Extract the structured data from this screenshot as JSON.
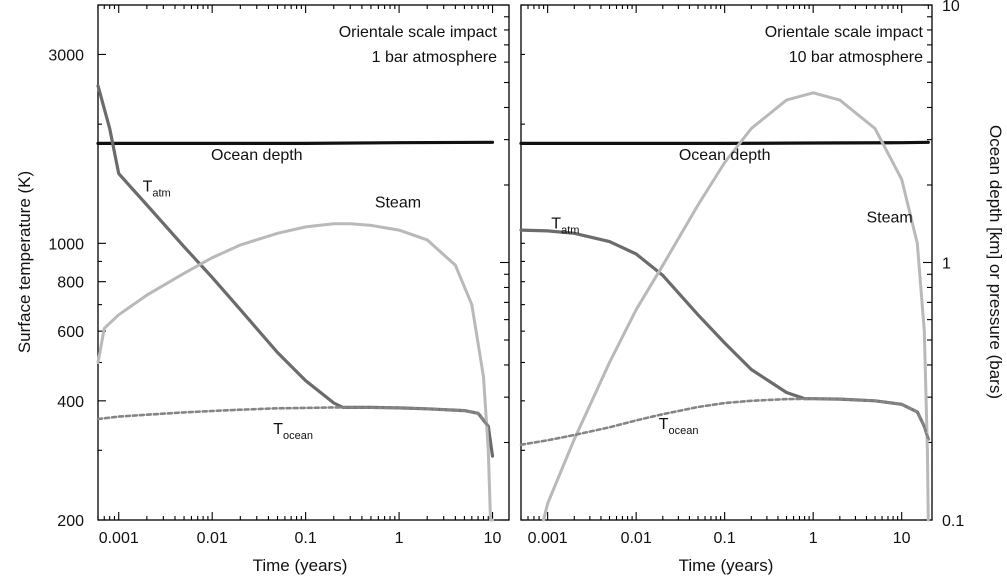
{
  "colors": {
    "t_atm": "#6b6b6b",
    "steam": "#b9b9b9",
    "t_ocean": "#858585",
    "ocean_depth": "#111111"
  },
  "chart_data": [
    {
      "type": "line",
      "title": "",
      "annotation_lines": [
        "Orientale scale impact",
        "1 bar atmosphere"
      ],
      "xlabel": "Time (years)",
      "ylabel_left": "Surface temperature (K)",
      "ylabel_right": "",
      "xscale": "log",
      "yscale": "log",
      "xlim": [
        0.0006,
        15
      ],
      "ylim_left": [
        200,
        4000
      ],
      "ylim_right": [
        0.1,
        10
      ],
      "xticks": [
        0.001,
        0.01,
        0.1,
        1,
        10
      ],
      "xtick_labels": [
        "0.001",
        "0.01",
        "0.1",
        "1",
        "10"
      ],
      "yticks_left": [
        200,
        400,
        600,
        800,
        1000,
        3000
      ],
      "ytick_labels_left": [
        "200",
        "400",
        "600",
        "800",
        "1000",
        "3000"
      ],
      "yticks_right": [],
      "ytick_labels_right": [],
      "series": [
        {
          "name": "Ocean depth",
          "label_at": [
            0.03,
            2.5
          ],
          "axis": "right",
          "style": "solid",
          "color_key": "ocean_depth",
          "x": [
            0.0006,
            0.001,
            0.01,
            0.1,
            1,
            10
          ],
          "y": [
            2.9,
            2.9,
            2.9,
            2.9,
            2.92,
            2.93
          ]
        },
        {
          "name": "Tatm",
          "label_at": [
            0.0018,
            1350
          ],
          "axis": "left",
          "style": "solid",
          "color_key": "t_atm",
          "x": [
            0.0006,
            0.0008,
            0.001,
            0.002,
            0.005,
            0.01,
            0.02,
            0.05,
            0.1,
            0.2,
            0.25,
            0.5,
            1,
            2,
            5,
            7,
            9,
            10
          ],
          "y": [
            2500,
            1950,
            1500,
            1250,
            980,
            820,
            680,
            530,
            450,
            395,
            385,
            385,
            384,
            382,
            378,
            372,
            345,
            290
          ]
        },
        {
          "name": "Steam",
          "label_at": [
            0.55,
            1230
          ],
          "axis": "left",
          "style": "solid",
          "color_key": "steam",
          "x": [
            0.0006,
            0.0007,
            0.001,
            0.002,
            0.005,
            0.01,
            0.02,
            0.05,
            0.1,
            0.2,
            0.3,
            0.5,
            1,
            2,
            4,
            6,
            8,
            9,
            9.5,
            10
          ],
          "y": [
            500,
            610,
            660,
            740,
            840,
            920,
            990,
            1060,
            1100,
            1120,
            1120,
            1110,
            1080,
            1020,
            880,
            700,
            460,
            300,
            200,
            150
          ]
        },
        {
          "name": "Tocean",
          "label_at": [
            0.045,
            330
          ],
          "axis": "left",
          "style": "dashed",
          "color_key": "t_ocean",
          "x": [
            0.0006,
            0.001,
            0.002,
            0.005,
            0.01,
            0.02,
            0.05,
            0.1,
            0.2,
            0.25,
            1,
            2,
            5,
            7,
            9
          ],
          "y": [
            360,
            365,
            369,
            374,
            377,
            380,
            383,
            384,
            385,
            385,
            384,
            382,
            378,
            372,
            345
          ]
        }
      ]
    },
    {
      "type": "line",
      "title": "",
      "annotation_lines": [
        "Orientale scale impact",
        "10 bar atmosphere"
      ],
      "xlabel": "Time (years)",
      "ylabel_left": "",
      "ylabel_right": "Ocean depth [km] or pressure (bars)",
      "xscale": "log",
      "yscale": "log",
      "xlim": [
        0.0005,
        22
      ],
      "ylim_left": [
        200,
        4000
      ],
      "ylim_right": [
        0.1,
        10
      ],
      "xticks": [
        0.001,
        0.01,
        0.1,
        1,
        10
      ],
      "xtick_labels": [
        "0.001",
        "0.01",
        "0.1",
        "1",
        "10"
      ],
      "yticks_left": [],
      "ytick_labels_left": [],
      "yticks_right": [
        0.1,
        1,
        10
      ],
      "ytick_labels_right": [
        "0.1",
        "1",
        "10"
      ],
      "series": [
        {
          "name": "Ocean depth",
          "label_at": [
            0.1,
            2.5
          ],
          "axis": "right",
          "style": "solid",
          "color_key": "ocean_depth",
          "x": [
            0.0005,
            0.001,
            0.01,
            0.1,
            1,
            10,
            20
          ],
          "y": [
            2.9,
            2.9,
            2.9,
            2.9,
            2.91,
            2.92,
            2.93
          ]
        },
        {
          "name": "Tatm",
          "label_at": [
            0.0011,
            1090
          ],
          "axis": "left",
          "style": "solid",
          "color_key": "t_atm",
          "x": [
            0.0005,
            0.001,
            0.002,
            0.005,
            0.01,
            0.02,
            0.05,
            0.1,
            0.2,
            0.5,
            0.8,
            1,
            2,
            5,
            10,
            15,
            18,
            20
          ],
          "y": [
            1080,
            1075,
            1060,
            1010,
            940,
            830,
            660,
            560,
            480,
            420,
            405,
            405,
            404,
            400,
            392,
            375,
            345,
            320
          ]
        },
        {
          "name": "Steam",
          "label_at": [
            4,
            1130
          ],
          "axis": "left",
          "style": "solid",
          "color_key": "steam",
          "x": [
            0.0009,
            0.001,
            0.002,
            0.005,
            0.01,
            0.02,
            0.05,
            0.1,
            0.2,
            0.5,
            1,
            2,
            5,
            10,
            15,
            18,
            19.5,
            20
          ],
          "y": [
            200,
            220,
            320,
            500,
            680,
            880,
            1250,
            1600,
            1950,
            2300,
            2400,
            2300,
            1950,
            1450,
            1000,
            600,
            300,
            200
          ]
        },
        {
          "name": "Tocean",
          "label_at": [
            0.018,
            340
          ],
          "axis": "left",
          "style": "dashed",
          "color_key": "t_ocean",
          "x": [
            0.0005,
            0.001,
            0.002,
            0.005,
            0.01,
            0.02,
            0.05,
            0.1,
            0.2,
            0.5,
            1,
            2,
            5,
            10,
            15,
            18,
            20
          ],
          "y": [
            310,
            318,
            328,
            343,
            357,
            370,
            386,
            395,
            400,
            404,
            405,
            404,
            400,
            392,
            375,
            345,
            320
          ]
        }
      ]
    }
  ]
}
